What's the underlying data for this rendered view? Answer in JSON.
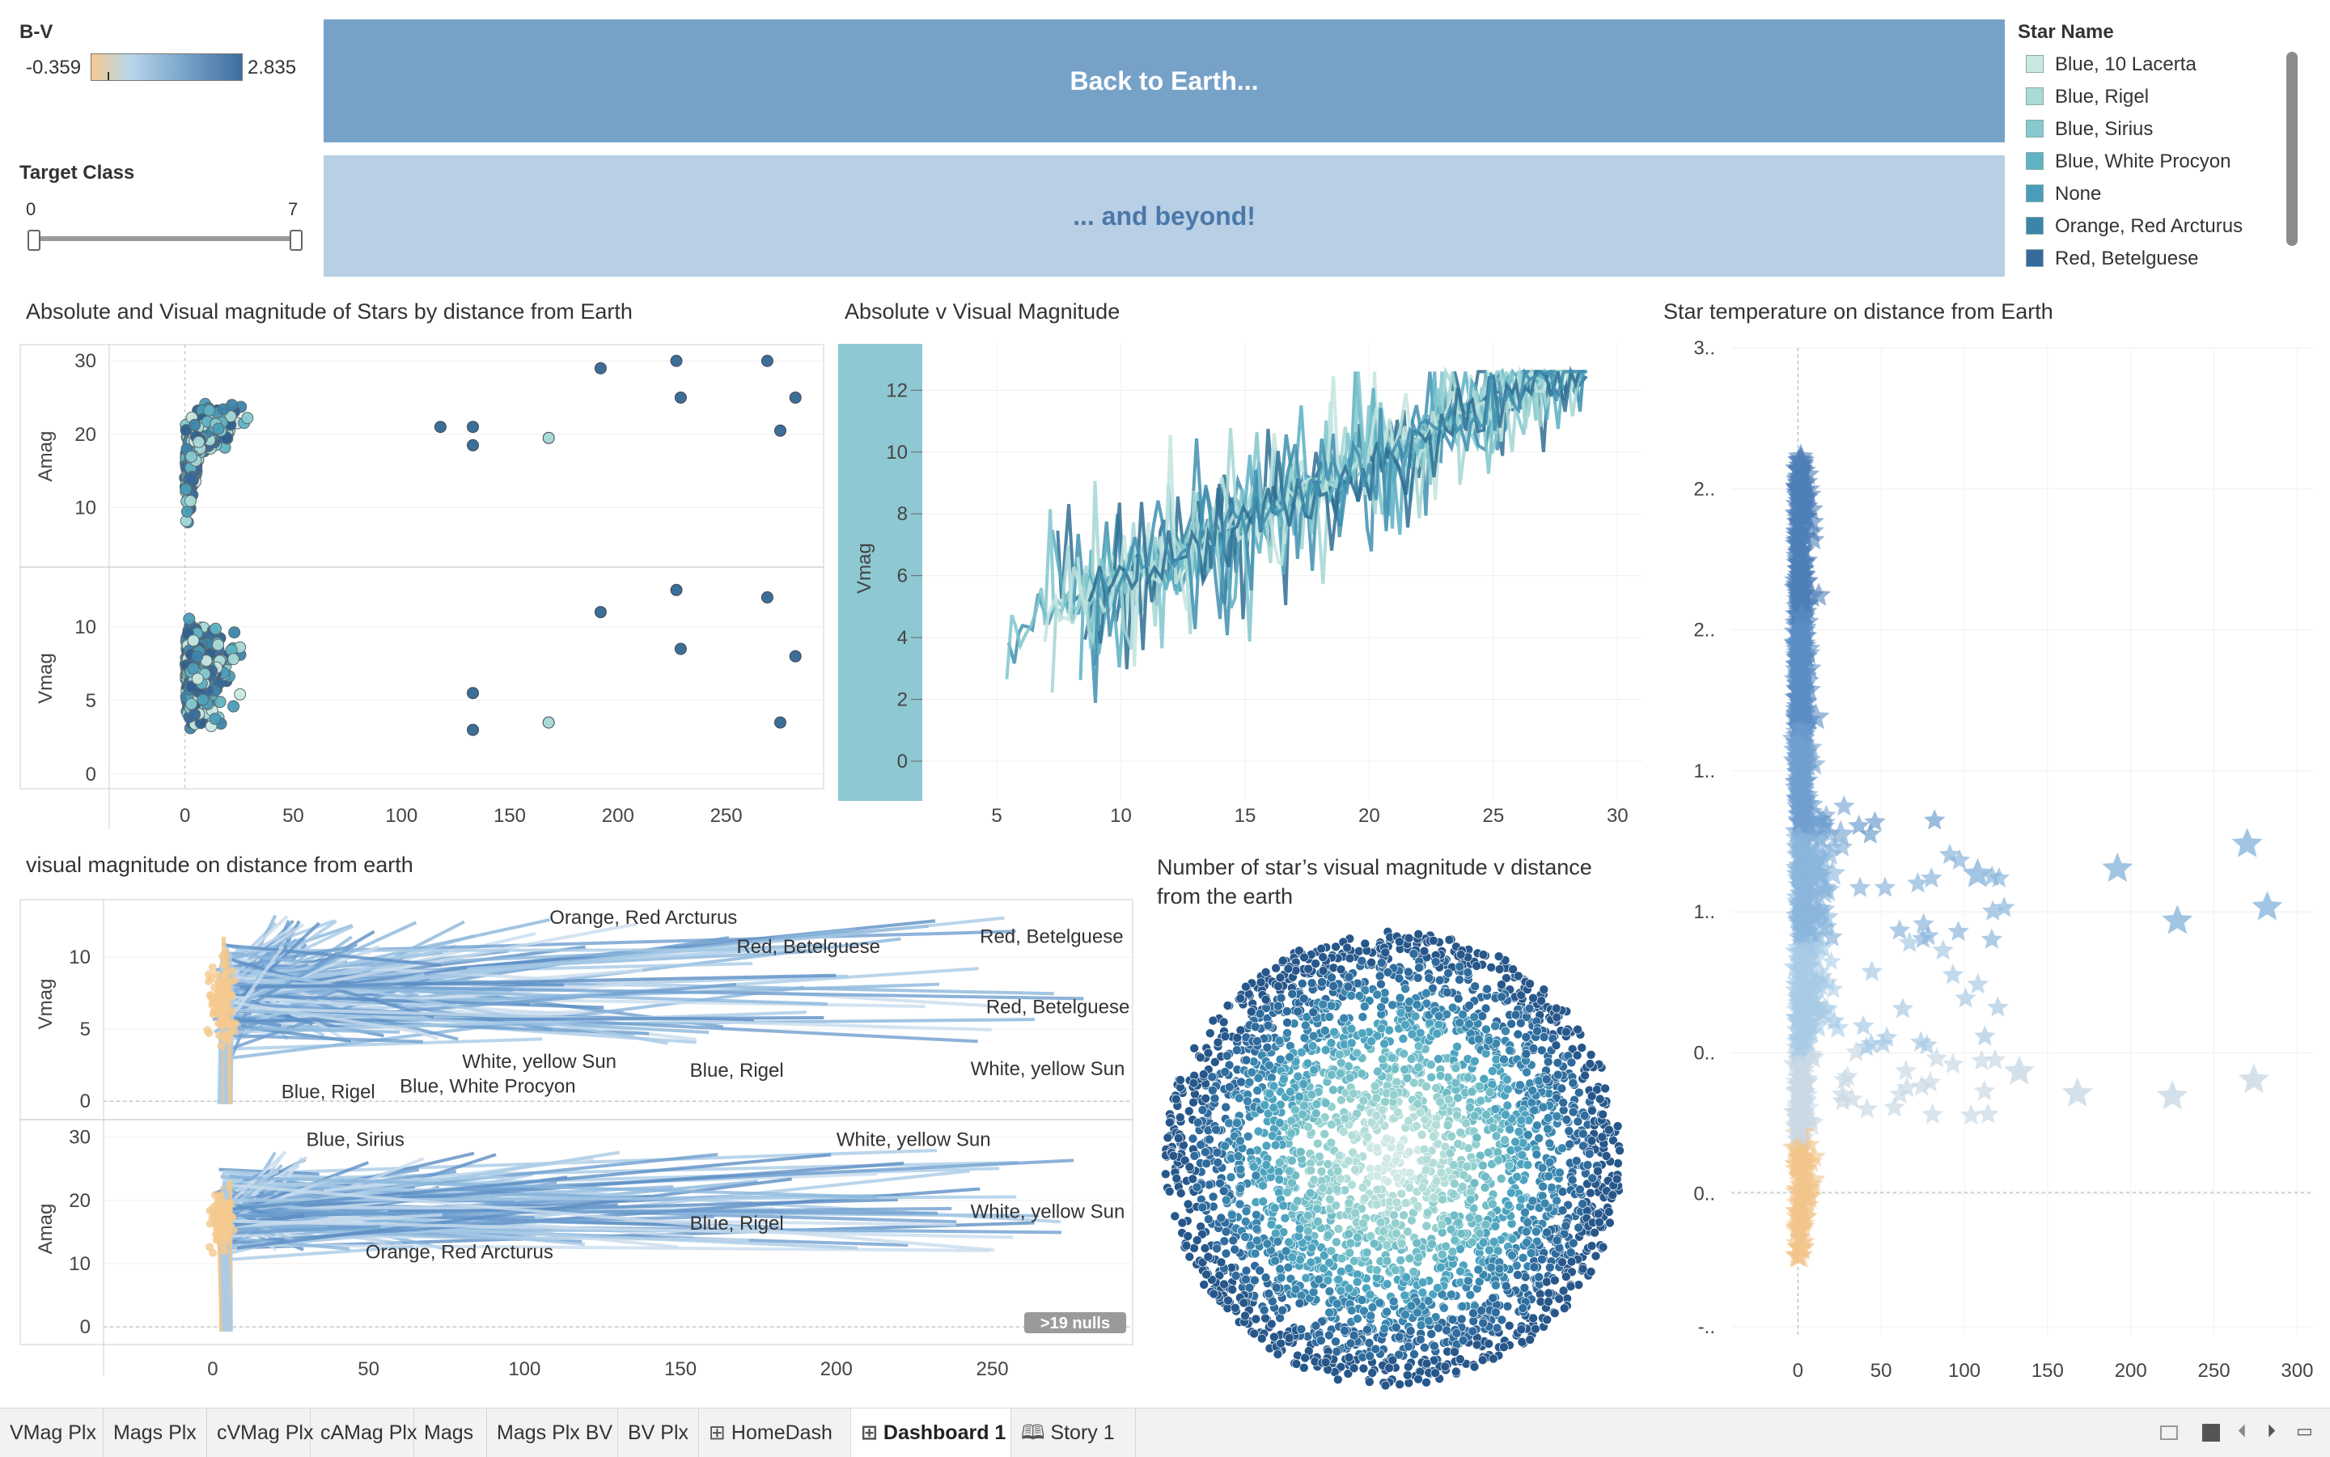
{
  "bv_filter": {
    "label": "B-V",
    "min": "-0.359",
    "max": "2.835"
  },
  "target_filter": {
    "label": "Target Class",
    "min": "0",
    "max": "7",
    "value": 0
  },
  "buttons": {
    "back": "Back to Earth...",
    "beyond": "... and beyond!"
  },
  "star_legend": {
    "title": "Star Name",
    "items": [
      {
        "label": "Blue, 10 Lacerta",
        "color": "#c9e8e2"
      },
      {
        "label": "Blue, Rigel",
        "color": "#a8dad6"
      },
      {
        "label": "Blue, Sirius",
        "color": "#86cad0"
      },
      {
        "label": "Blue, White Procyon",
        "color": "#5fb3c3"
      },
      {
        "label": "None",
        "color": "#4a9db8"
      },
      {
        "label": "Orange, Red Arcturus",
        "color": "#3c84aa"
      },
      {
        "label": "Red, Betelguese",
        "color": "#37699a"
      }
    ]
  },
  "charts": {
    "c1": {
      "title": "Absolute and Visual magnitude of Stars by distance from Earth",
      "ylabel_top": "Amag",
      "ylabel_bottom": "Vmag"
    },
    "c2": {
      "title": "Absolute v Visual Magnitude",
      "ylabel": "Vmag"
    },
    "c3": {
      "title": "Star temperature on distance from Earth"
    },
    "c4": {
      "title": "visual magnitude on distance from earth",
      "ylabel_top": "Vmag",
      "ylabel_bottom": "Amag",
      "nulls": ">19 nulls"
    },
    "c5": {
      "title": "Number of star’s visual magnitude v distance from the earth"
    }
  },
  "chart_data": [
    {
      "type": "scatter",
      "title": "Absolute and Visual magnitude of Stars by distance from Earth",
      "x_ticks": [
        "0",
        "50",
        "100",
        "150",
        "200",
        "250"
      ],
      "xlim": [
        -35,
        295
      ],
      "panels": [
        {
          "ylabel": "Amag",
          "y_ticks": [
            "10",
            "20",
            "30"
          ],
          "ylim": [
            2,
            32
          ],
          "outliers": [
            {
              "x": 192,
              "y": 29
            },
            {
              "x": 227,
              "y": 30
            },
            {
              "x": 229,
              "y": 25
            },
            {
              "x": 269,
              "y": 30
            },
            {
              "x": 275,
              "y": 20.5
            },
            {
              "x": 282,
              "y": 25
            },
            {
              "x": 168,
              "y": 19.5
            },
            {
              "x": 133,
              "y": 21
            },
            {
              "x": 133,
              "y": 18.5
            },
            {
              "x": 118,
              "y": 21
            }
          ]
        },
        {
          "ylabel": "Vmag",
          "y_ticks": [
            "0",
            "5",
            "10"
          ],
          "ylim": [
            -1,
            14
          ],
          "outliers": [
            {
              "x": 192,
              "y": 11
            },
            {
              "x": 227,
              "y": 12.5
            },
            {
              "x": 229,
              "y": 8.5
            },
            {
              "x": 269,
              "y": 12
            },
            {
              "x": 275,
              "y": 3.5
            },
            {
              "x": 282,
              "y": 8
            },
            {
              "x": 168,
              "y": 3.5
            },
            {
              "x": 133,
              "y": 5.5
            },
            {
              "x": 133,
              "y": 3
            }
          ]
        }
      ]
    },
    {
      "type": "line",
      "title": "Absolute v Visual Magnitude",
      "ylabel": "Vmag",
      "x_ticks": [
        "5",
        "10",
        "15",
        "20",
        "25",
        "30"
      ],
      "y_ticks": [
        "0",
        "2",
        "4",
        "6",
        "8",
        "10",
        "12"
      ],
      "xlim": [
        2,
        31
      ],
      "ylim": [
        -0.5,
        13.5
      ]
    },
    {
      "type": "scatter",
      "title": "Star temperature on distance from Earth",
      "x_ticks": [
        "0",
        "50",
        "100",
        "150",
        "200",
        "250",
        "300"
      ],
      "y_ticks": [
        "-..",
        "0..",
        "0..",
        "1..",
        "1..",
        "2..",
        "2..",
        "3.."
      ],
      "xlim": [
        -40,
        310
      ],
      "ylim": [
        -0.5,
        3.1
      ],
      "outliers": [
        {
          "x": 192,
          "y": 1.2
        },
        {
          "x": 270,
          "y": 1.29
        },
        {
          "x": 282,
          "y": 1.06
        },
        {
          "x": 228,
          "y": 1.01
        },
        {
          "x": 274,
          "y": 0.43
        },
        {
          "x": 225,
          "y": 0.37
        },
        {
          "x": 168,
          "y": 0.38
        },
        {
          "x": 108,
          "y": 1.18
        },
        {
          "x": 133,
          "y": 0.46
        }
      ]
    },
    {
      "type": "line",
      "title": "visual magnitude on distance from earth",
      "x_ticks": [
        "0",
        "50",
        "100",
        "150",
        "200",
        "250"
      ],
      "xlim": [
        -35,
        295
      ],
      "panels": [
        {
          "ylabel": "Vmag",
          "y_ticks": [
            "0",
            "5",
            "10"
          ]
        },
        {
          "ylabel": "Amag",
          "y_ticks": [
            "0",
            "10",
            "20",
            "30"
          ]
        }
      ],
      "annotations": [
        {
          "panel": 0,
          "text": "Orange, Red Arcturus",
          "x": 108,
          "y": 12.3
        },
        {
          "panel": 0,
          "text": "Red, Betelguese",
          "x": 168,
          "y": 10.3
        },
        {
          "panel": 0,
          "text": "Red, Betelguese",
          "x": 246,
          "y": 11.0
        },
        {
          "panel": 0,
          "text": "Red, Betelguese",
          "x": 248,
          "y": 6.1
        },
        {
          "panel": 0,
          "text": "White, yellow Sun",
          "x": 80,
          "y": 2.3
        },
        {
          "panel": 0,
          "text": "Blue, Rigel",
          "x": 153,
          "y": 1.7
        },
        {
          "panel": 0,
          "text": "White, yellow Sun",
          "x": 243,
          "y": 1.8
        },
        {
          "panel": 0,
          "text": "Blue, Rigel",
          "x": 22,
          "y": 0.2
        },
        {
          "panel": 0,
          "text": "Blue, White Procyon",
          "x": 60,
          "y": 0.6
        },
        {
          "panel": 1,
          "text": "Blue, Sirius",
          "x": 30,
          "y": 28.6
        },
        {
          "panel": 1,
          "text": "White, yellow Sun",
          "x": 200,
          "y": 28.6
        },
        {
          "panel": 1,
          "text": "Blue, Rigel",
          "x": 153,
          "y": 15.4
        },
        {
          "panel": 1,
          "text": "White, yellow Sun",
          "x": 243,
          "y": 17.2
        },
        {
          "panel": 1,
          "text": "Orange, Red Arcturus",
          "x": 49,
          "y": 10.8
        }
      ]
    },
    {
      "type": "scatter",
      "title": "Number of star’s visual magnitude v distance from the earth"
    }
  ],
  "tabs": [
    {
      "label": "VMag Plx",
      "icon": ""
    },
    {
      "label": "Mags Plx",
      "icon": ""
    },
    {
      "label": "cVMag Plx",
      "icon": ""
    },
    {
      "label": "cAMag Plx",
      "icon": ""
    },
    {
      "label": "Mags",
      "icon": ""
    },
    {
      "label": "Mags Plx BV",
      "icon": ""
    },
    {
      "label": "BV Plx",
      "icon": ""
    },
    {
      "label": "HomeDash",
      "icon": "grid-icon"
    },
    {
      "label": "Dashboard 1",
      "icon": "grid-icon",
      "active": true
    },
    {
      "label": "Story 1",
      "icon": "book-icon"
    }
  ]
}
